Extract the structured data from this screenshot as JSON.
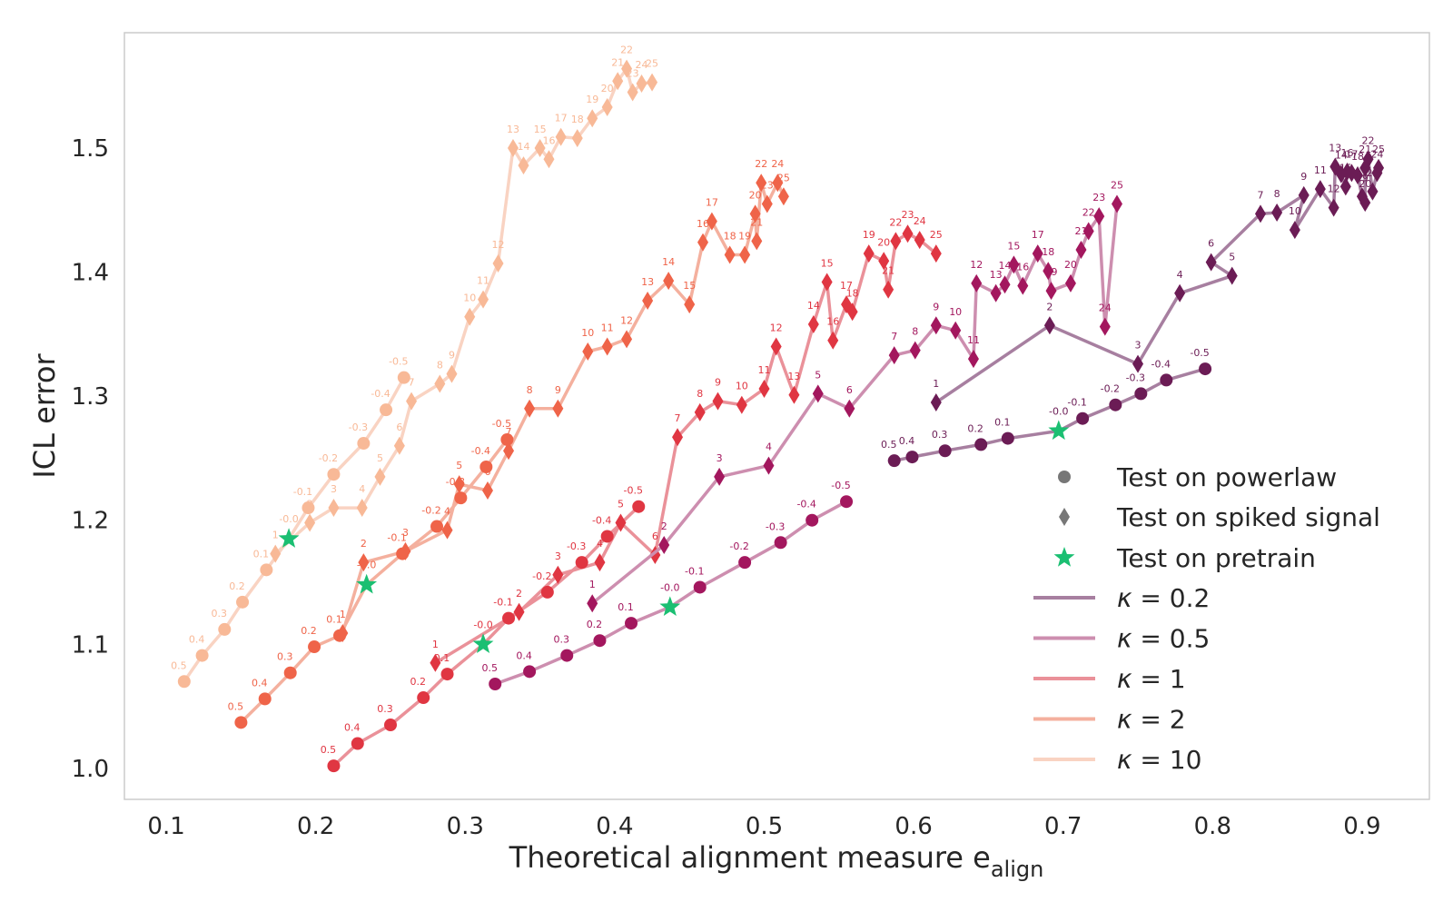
{
  "chart_data": {
    "type": "line",
    "xlabel": "Theoretical alignment measure e",
    "xlabel_sub": "align",
    "ylabel": "ICL error",
    "xlim": [
      0.072,
      0.945
    ],
    "ylim": [
      0.975,
      1.593
    ],
    "xticks": [
      "0.1",
      "0.2",
      "0.3",
      "0.4",
      "0.5",
      "0.6",
      "0.7",
      "0.8",
      "0.9"
    ],
    "yticks": [
      "1.0",
      "1.1",
      "1.2",
      "1.3",
      "1.4",
      "1.5"
    ],
    "grid": false,
    "legend_position": "lower-right",
    "legend": {
      "markers": [
        {
          "label": "Test on powerlaw",
          "marker": "circle",
          "color": "#777777"
        },
        {
          "label": "Test on spiked signal",
          "marker": "diamond",
          "color": "#777777"
        },
        {
          "label": "Test on pretrain",
          "marker": "star",
          "color": "#1bbf72"
        }
      ],
      "lines_prefix": "κ = "
    },
    "series": [
      {
        "name": "0.2",
        "color": "#6b1c55",
        "line_color": "#a77fa0",
        "powerlaw": {
          "x": [
            0.587,
            0.599,
            0.621,
            0.645,
            0.663,
            0.713,
            0.735,
            0.752,
            0.769,
            0.795
          ],
          "y": [
            1.248,
            1.251,
            1.256,
            1.261,
            1.266,
            1.282,
            1.293,
            1.302,
            1.313,
            1.322
          ],
          "labels": [
            "0.5",
            "0.4",
            "0.3",
            "0.2",
            "0.1",
            "-0.1",
            "-0.2",
            "-0.3",
            "-0.4",
            "-0.5"
          ]
        },
        "spiked": {
          "x": [
            0.615,
            0.691,
            0.75,
            0.778,
            0.813,
            0.799,
            0.832,
            0.843,
            0.861,
            0.855,
            0.872,
            0.881,
            0.882,
            0.886,
            0.889,
            0.89,
            0.893,
            0.897,
            0.9,
            0.902,
            0.902,
            0.904,
            0.907,
            0.91,
            0.911
          ],
          "y": [
            1.295,
            1.357,
            1.326,
            1.383,
            1.397,
            1.408,
            1.447,
            1.448,
            1.462,
            1.434,
            1.467,
            1.452,
            1.485,
            1.479,
            1.469,
            1.481,
            1.48,
            1.478,
            1.461,
            1.456,
            1.484,
            1.491,
            1.465,
            1.48,
            1.484
          ],
          "labels": [
            "1",
            "2",
            "3",
            "4",
            "5",
            "6",
            "7",
            "8",
            "9",
            "10",
            "11",
            "12",
            "13",
            "14",
            "15",
            "16",
            "17",
            "18",
            "19",
            "20",
            "21",
            "22",
            "23",
            "24",
            "25"
          ]
        },
        "pretrain": {
          "x": 0.697,
          "y": 1.272,
          "label": "-0.0"
        }
      },
      {
        "name": "0.5",
        "color": "#a3175e",
        "line_color": "#cd8eaf",
        "powerlaw": {
          "x": [
            0.32,
            0.343,
            0.368,
            0.39,
            0.411,
            0.457,
            0.487,
            0.511,
            0.532,
            0.555
          ],
          "y": [
            1.068,
            1.078,
            1.091,
            1.103,
            1.117,
            1.146,
            1.166,
            1.182,
            1.2,
            1.215
          ],
          "labels": [
            "0.5",
            "0.4",
            "0.3",
            "0.2",
            "0.1",
            "-0.1",
            "-0.2",
            "-0.3",
            "-0.4",
            "-0.5"
          ]
        },
        "spiked": {
          "x": [
            0.385,
            0.433,
            0.47,
            0.503,
            0.536,
            0.557,
            0.587,
            0.601,
            0.615,
            0.628,
            0.64,
            0.642,
            0.655,
            0.661,
            0.667,
            0.673,
            0.683,
            0.69,
            0.692,
            0.705,
            0.712,
            0.717,
            0.724,
            0.728,
            0.736
          ],
          "y": [
            1.133,
            1.18,
            1.235,
            1.244,
            1.302,
            1.29,
            1.333,
            1.337,
            1.357,
            1.353,
            1.33,
            1.391,
            1.383,
            1.39,
            1.406,
            1.389,
            1.415,
            1.401,
            1.385,
            1.391,
            1.418,
            1.433,
            1.445,
            1.356,
            1.455
          ],
          "labels": [
            "1",
            "2",
            "3",
            "4",
            "5",
            "6",
            "7",
            "8",
            "9",
            "10",
            "11",
            "12",
            "13",
            "14",
            "15",
            "16",
            "17",
            "18",
            "19",
            "20",
            "21",
            "22",
            "23",
            "24",
            "25"
          ]
        },
        "pretrain": {
          "x": 0.437,
          "y": 1.13,
          "label": "-0.0"
        }
      },
      {
        "name": "1",
        "color": "#e03642",
        "line_color": "#ea9199",
        "powerlaw": {
          "x": [
            0.212,
            0.228,
            0.25,
            0.272,
            0.288,
            0.329,
            0.355,
            0.378,
            0.395,
            0.416
          ],
          "y": [
            1.002,
            1.02,
            1.035,
            1.057,
            1.076,
            1.121,
            1.142,
            1.166,
            1.187,
            1.211
          ],
          "labels": [
            "0.5",
            "0.4",
            "0.3",
            "0.2",
            "0.1",
            "-0.1",
            "-0.2",
            "-0.3",
            "-0.4",
            "-0.5"
          ]
        },
        "spiked": {
          "x": [
            0.28,
            0.336,
            0.362,
            0.39,
            0.404,
            0.427,
            0.442,
            0.457,
            0.469,
            0.485,
            0.5,
            0.508,
            0.52,
            0.533,
            0.542,
            0.546,
            0.555,
            0.559,
            0.57,
            0.58,
            0.583,
            0.588,
            0.596,
            0.604,
            0.615
          ],
          "y": [
            1.085,
            1.126,
            1.156,
            1.166,
            1.198,
            1.172,
            1.267,
            1.287,
            1.296,
            1.293,
            1.306,
            1.34,
            1.301,
            1.358,
            1.392,
            1.345,
            1.374,
            1.368,
            1.415,
            1.409,
            1.386,
            1.425,
            1.431,
            1.426,
            1.415
          ],
          "labels": [
            "1",
            "2",
            "3",
            "4",
            "5",
            "6",
            "7",
            "8",
            "9",
            "10",
            "11",
            "12",
            "13",
            "14",
            "15",
            "16",
            "17",
            "18",
            "19",
            "20",
            "21",
            "22",
            "23",
            "24",
            "25"
          ]
        },
        "pretrain": {
          "x": 0.312,
          "y": 1.1,
          "label": "-0.0"
        }
      },
      {
        "name": "2",
        "color": "#ef6449",
        "line_color": "#f4b09e",
        "powerlaw": {
          "x": [
            0.15,
            0.166,
            0.183,
            0.199,
            0.216,
            0.258,
            0.281,
            0.297,
            0.314,
            0.328
          ],
          "y": [
            1.037,
            1.056,
            1.077,
            1.098,
            1.107,
            1.173,
            1.195,
            1.218,
            1.243,
            1.265
          ],
          "labels": [
            "0.5",
            "0.4",
            "0.3",
            "0.2",
            "0.1",
            "-0.1",
            "-0.2",
            "-0.3",
            "-0.4",
            "-0.5"
          ]
        },
        "spiked": {
          "x": [
            0.218,
            0.232,
            0.26,
            0.288,
            0.296,
            0.315,
            0.329,
            0.343,
            0.362,
            0.382,
            0.395,
            0.408,
            0.422,
            0.436,
            0.45,
            0.459,
            0.465,
            0.477,
            0.487,
            0.494,
            0.495,
            0.498,
            0.502,
            0.509,
            0.513
          ],
          "y": [
            1.109,
            1.166,
            1.175,
            1.192,
            1.229,
            1.224,
            1.256,
            1.29,
            1.29,
            1.336,
            1.34,
            1.346,
            1.377,
            1.393,
            1.374,
            1.424,
            1.441,
            1.414,
            1.414,
            1.447,
            1.425,
            1.472,
            1.455,
            1.472,
            1.461
          ],
          "labels": [
            "1",
            "2",
            "3",
            "4",
            "5",
            "6",
            "7",
            "8",
            "9",
            "10",
            "11",
            "12",
            "13",
            "14",
            "15",
            "16",
            "17",
            "18",
            "19",
            "20",
            "21",
            "22",
            "23",
            "24",
            "25"
          ]
        },
        "pretrain": {
          "x": 0.234,
          "y": 1.148,
          "label": "-0.0"
        }
      },
      {
        "name": "10",
        "color": "#f8b997",
        "line_color": "#f9d3c2",
        "powerlaw": {
          "x": [
            0.112,
            0.124,
            0.139,
            0.151,
            0.167,
            0.195,
            0.212,
            0.232,
            0.247,
            0.259
          ],
          "y": [
            1.07,
            1.091,
            1.112,
            1.134,
            1.16,
            1.21,
            1.237,
            1.262,
            1.289,
            1.315
          ],
          "labels": [
            "0.5",
            "0.4",
            "0.3",
            "0.2",
            "0.1",
            "-0.1",
            "-0.2",
            "-0.3",
            "-0.4",
            "-0.5"
          ]
        },
        "spiked": {
          "x": [
            0.173,
            0.196,
            0.212,
            0.231,
            0.243,
            0.256,
            0.264,
            0.283,
            0.291,
            0.303,
            0.312,
            0.322,
            0.332,
            0.339,
            0.35,
            0.356,
            0.364,
            0.375,
            0.385,
            0.395,
            0.402,
            0.408,
            0.412,
            0.418,
            0.425
          ],
          "y": [
            1.173,
            1.198,
            1.21,
            1.21,
            1.235,
            1.26,
            1.296,
            1.31,
            1.318,
            1.364,
            1.378,
            1.407,
            1.5,
            1.486,
            1.5,
            1.491,
            1.509,
            1.508,
            1.524,
            1.533,
            1.554,
            1.564,
            1.545,
            1.552,
            1.553
          ],
          "labels": [
            "1",
            "2",
            "3",
            "4",
            "5",
            "6",
            "7",
            "8",
            "9",
            "10",
            "11",
            "12",
            "13",
            "14",
            "15",
            "16",
            "17",
            "18",
            "19",
            "20",
            "21",
            "22",
            "23",
            "24",
            "25"
          ]
        },
        "pretrain": {
          "x": 0.182,
          "y": 1.185,
          "label": "-0.0"
        }
      }
    ]
  }
}
